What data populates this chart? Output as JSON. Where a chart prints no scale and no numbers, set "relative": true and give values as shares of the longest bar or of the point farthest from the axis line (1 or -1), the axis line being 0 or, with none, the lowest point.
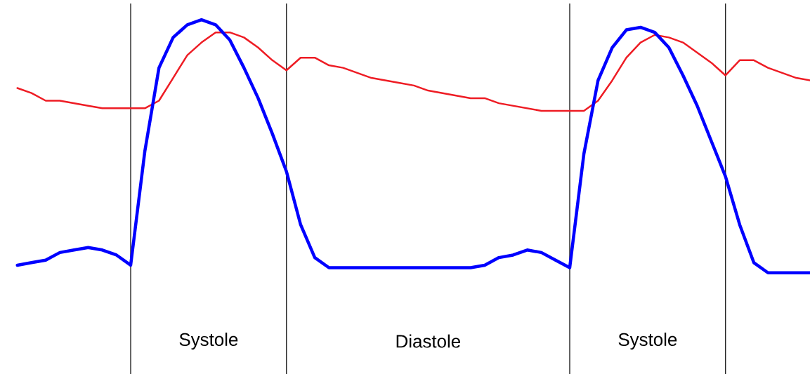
{
  "chart_data": {
    "type": "line",
    "relative": true,
    "marker": "none",
    "line_style": "solid",
    "categories": [
      null,
      null,
      null,
      null,
      null,
      null,
      null,
      null,
      null,
      null,
      null,
      null,
      null,
      null,
      null,
      null,
      null,
      null,
      null,
      null,
      null,
      null,
      null,
      null,
      null,
      null,
      null,
      null,
      null,
      null,
      null,
      null,
      null,
      null,
      null,
      null,
      null,
      null,
      null,
      null,
      null,
      null,
      null,
      null,
      null,
      null,
      null,
      null,
      null,
      null,
      null,
      null,
      null,
      null,
      null,
      null,
      null
    ],
    "series": [
      {
        "color": "#ee1c24",
        "values": [
          0.73,
          0.71,
          0.68,
          0.68,
          0.67,
          0.66,
          0.65,
          0.65,
          0.65,
          0.65,
          0.68,
          0.77,
          0.86,
          0.91,
          0.95,
          0.95,
          0.93,
          0.89,
          0.84,
          0.8,
          0.85,
          0.85,
          0.82,
          0.81,
          0.79,
          0.77,
          0.76,
          0.75,
          0.74,
          0.72,
          0.71,
          0.7,
          0.69,
          0.69,
          0.67,
          0.66,
          0.65,
          0.64,
          0.64,
          0.64,
          0.64,
          0.68,
          0.76,
          0.85,
          0.91,
          0.94,
          0.93,
          0.91,
          0.87,
          0.83,
          0.78,
          0.84,
          0.84,
          0.81,
          0.79,
          0.77,
          0.76
        ]
      },
      {
        "color": "#0000ff",
        "values": [
          0.03,
          0.04,
          0.05,
          0.08,
          0.09,
          0.1,
          0.09,
          0.07,
          0.03,
          0.48,
          0.81,
          0.93,
          0.98,
          1,
          0.98,
          0.92,
          0.81,
          0.69,
          0.55,
          0.4,
          0.19,
          0.06,
          0.02,
          0.02,
          0.02,
          0.02,
          0.02,
          0.02,
          0.02,
          0.02,
          0.02,
          0.02,
          0.02,
          0.03,
          0.06,
          0.07,
          0.09,
          0.08,
          0.05,
          0.02,
          0.47,
          0.76,
          0.89,
          0.96,
          0.97,
          0.95,
          0.89,
          0.78,
          0.66,
          0.52,
          0.38,
          0.19,
          0.04,
          0,
          0,
          0,
          0
        ]
      }
    ],
    "grid": "x",
    "annotations": [
      "Systole",
      "Diastole",
      "Systole"
    ]
  }
}
